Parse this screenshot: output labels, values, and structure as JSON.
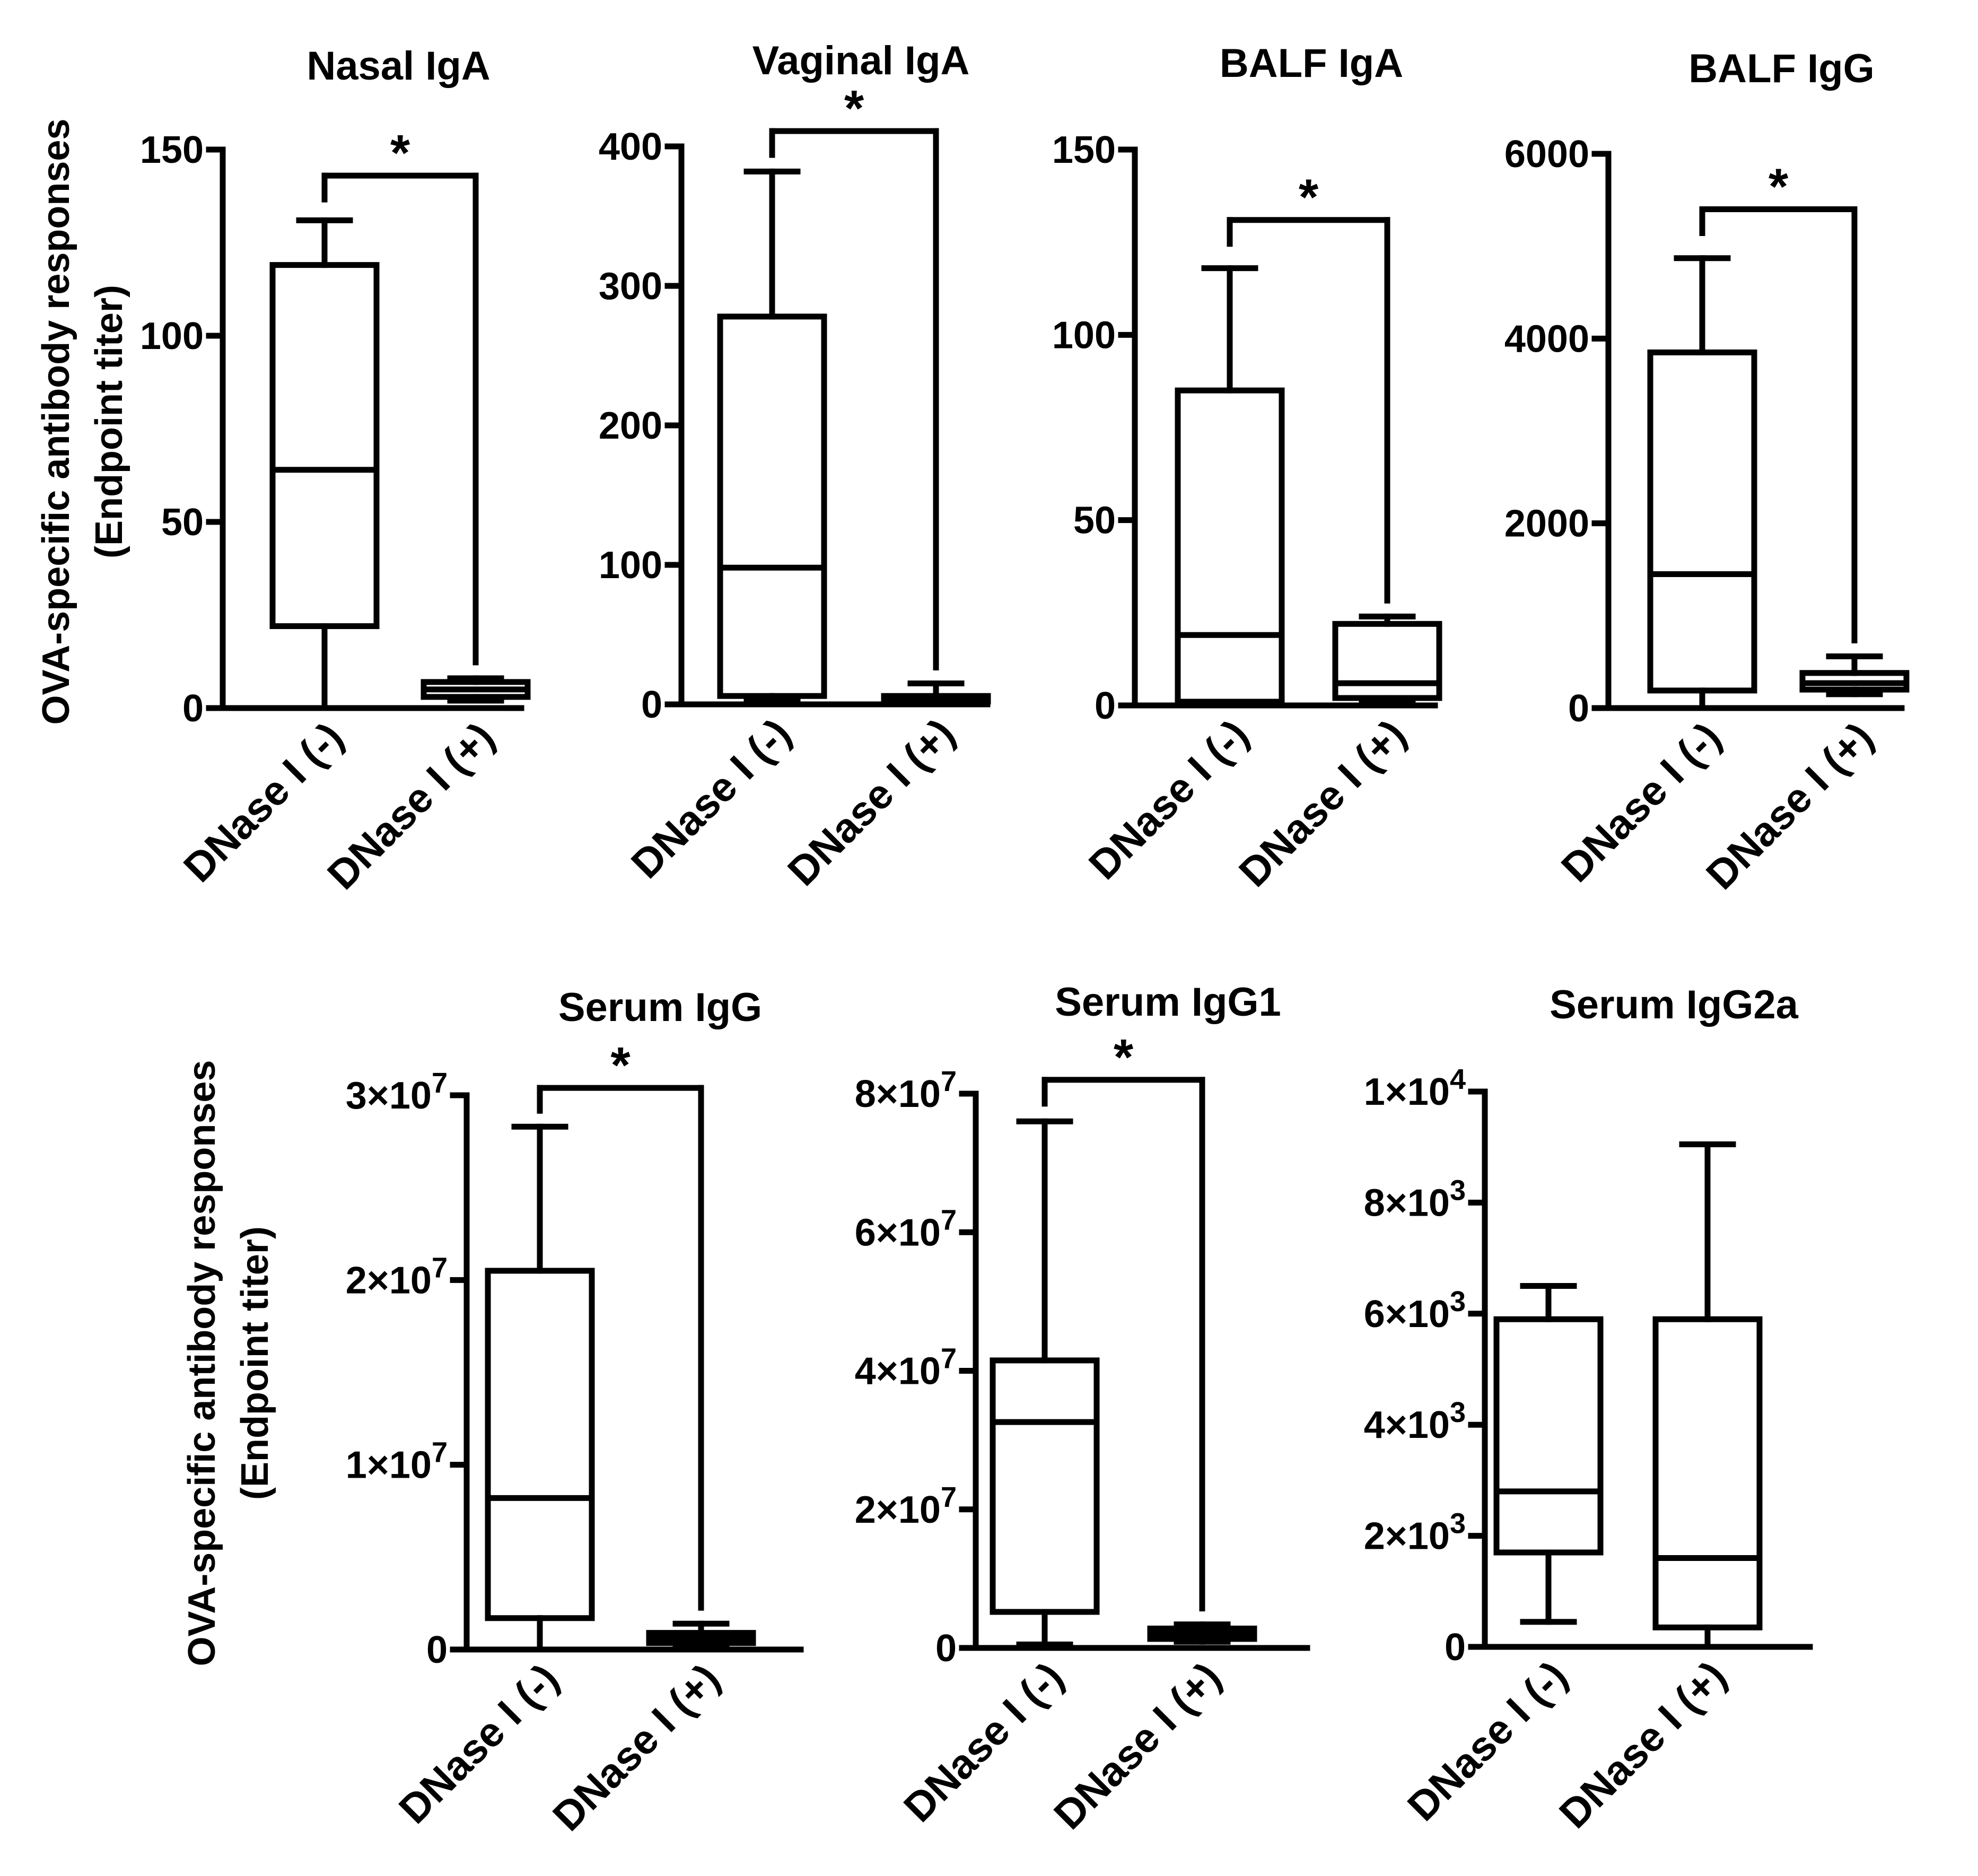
{
  "figure": {
    "ylabel_line1": "OVA-specific antibody responses",
    "ylabel_line2": "(Endpoint titer)"
  },
  "chart_data": [
    {
      "type": "box",
      "title": "Nasal IgA",
      "ylabel": "OVA-specific antibody responses (Endpoint titer)",
      "ylim": [
        0,
        150
      ],
      "yticks": [
        {
          "value": 0,
          "label": "0"
        },
        {
          "value": 50,
          "label": "50"
        },
        {
          "value": 100,
          "label": "100"
        },
        {
          "value": 150,
          "label": "150"
        }
      ],
      "categories": [
        "DNase I (-)",
        "DNase I (+)"
      ],
      "boxes": [
        {
          "min": 0,
          "q1": 22,
          "median": 64,
          "q3": 119,
          "max": 131
        },
        {
          "min": 2,
          "q1": 3,
          "median": 5,
          "q3": 7,
          "max": 8
        }
      ],
      "significance": {
        "label": "*",
        "y": 143
      }
    },
    {
      "type": "box",
      "title": "Vaginal IgA",
      "ylabel": "",
      "ylim": [
        0,
        400
      ],
      "yticks": [
        {
          "value": 0,
          "label": "0"
        },
        {
          "value": 100,
          "label": "100"
        },
        {
          "value": 200,
          "label": "200"
        },
        {
          "value": 300,
          "label": "300"
        },
        {
          "value": 400,
          "label": "400"
        }
      ],
      "categories": [
        "DNase I (-)",
        "DNase I (+)"
      ],
      "boxes": [
        {
          "min": 4,
          "q1": 6,
          "median": 98,
          "q3": 278,
          "max": 382
        },
        {
          "min": 1,
          "q1": 2,
          "median": 4,
          "q3": 6,
          "max": 15
        }
      ],
      "significance": {
        "label": "*",
        "y": 411
      }
    },
    {
      "type": "box",
      "title": "BALF IgA",
      "ylabel": "",
      "ylim": [
        0,
        150
      ],
      "yticks": [
        {
          "value": 0,
          "label": "0"
        },
        {
          "value": 50,
          "label": "50"
        },
        {
          "value": 100,
          "label": "100"
        },
        {
          "value": 150,
          "label": "150"
        }
      ],
      "categories": [
        "DNase I (-)",
        "DNase I (+)"
      ],
      "boxes": [
        {
          "min": 0,
          "q1": 1,
          "median": 19,
          "q3": 85,
          "max": 118
        },
        {
          "min": 1,
          "q1": 2,
          "median": 6,
          "q3": 22,
          "max": 24
        }
      ],
      "significance": {
        "label": "*",
        "y": 131
      }
    },
    {
      "type": "box",
      "title": "BALF IgG",
      "ylabel": "",
      "ylim": [
        0,
        6000
      ],
      "yticks": [
        {
          "value": 0,
          "label": "0"
        },
        {
          "value": 2000,
          "label": "2000"
        },
        {
          "value": 4000,
          "label": "4000"
        },
        {
          "value": 6000,
          "label": "6000"
        }
      ],
      "categories": [
        "DNase I (-)",
        "DNase I (+)"
      ],
      "boxes": [
        {
          "min": 0,
          "q1": 190,
          "median": 1450,
          "q3": 3850,
          "max": 4870
        },
        {
          "min": 150,
          "q1": 200,
          "median": 270,
          "q3": 380,
          "max": 560
        }
      ],
      "significance": {
        "label": "*",
        "y": 5400
      }
    },
    {
      "type": "box",
      "title": "Serum IgG",
      "ylabel": "OVA-specific antibody responses (Endpoint titer)",
      "ylim": [
        0,
        30000000
      ],
      "yticks": [
        {
          "value": 0,
          "label": "0"
        },
        {
          "value": 10000000,
          "label": "1×10",
          "exp": "7"
        },
        {
          "value": 20000000,
          "label": "2×10",
          "exp": "7"
        },
        {
          "value": 30000000,
          "label": "3×10",
          "exp": "7"
        }
      ],
      "categories": [
        "DNase I (-)",
        "DNase I (+)"
      ],
      "boxes": [
        {
          "min": 100000,
          "q1": 1700000,
          "median": 8200000,
          "q3": 20500000,
          "max": 28300000
        },
        {
          "min": 200000,
          "q1": 350000,
          "median": 600000,
          "q3": 900000,
          "max": 1400000
        }
      ],
      "significance": {
        "label": "*",
        "y": 30400000
      }
    },
    {
      "type": "box",
      "title": "Serum IgG1",
      "ylabel": "",
      "ylim": [
        0,
        80000000
      ],
      "yticks": [
        {
          "value": 0,
          "label": "0"
        },
        {
          "value": 20000000,
          "label": "2×10",
          "exp": "7"
        },
        {
          "value": 40000000,
          "label": "4×10",
          "exp": "7"
        },
        {
          "value": 60000000,
          "label": "6×10",
          "exp": "7"
        },
        {
          "value": 80000000,
          "label": "8×10",
          "exp": "7"
        }
      ],
      "categories": [
        "DNase I (-)",
        "DNase I (+)"
      ],
      "boxes": [
        {
          "min": 500000,
          "q1": 5200000,
          "median": 32600000,
          "q3": 41500000,
          "max": 76000000
        },
        {
          "min": 900000,
          "q1": 1300000,
          "median": 2000000,
          "q3": 2800000,
          "max": 3400000
        }
      ],
      "significance": {
        "label": "*",
        "y": 82000000
      }
    },
    {
      "type": "box",
      "title": "Serum IgG2a",
      "ylabel": "",
      "ylim": [
        0,
        10000
      ],
      "yticks": [
        {
          "value": 0,
          "label": "0"
        },
        {
          "value": 2000,
          "label": "2×10",
          "exp": "3"
        },
        {
          "value": 4000,
          "label": "4×10",
          "exp": "3"
        },
        {
          "value": 6000,
          "label": "6×10",
          "exp": "3"
        },
        {
          "value": 8000,
          "label": "8×10",
          "exp": "3"
        },
        {
          "value": 10000,
          "label": "1×10",
          "exp": "4"
        }
      ],
      "categories": [
        "DNase I (-)",
        "DNase I (+)"
      ],
      "boxes": [
        {
          "min": 450,
          "q1": 1700,
          "median": 2800,
          "q3": 5900,
          "max": 6500
        },
        {
          "min": 0,
          "q1": 350,
          "median": 1600,
          "q3": 5900,
          "max": 9050
        }
      ],
      "significance": null
    }
  ]
}
